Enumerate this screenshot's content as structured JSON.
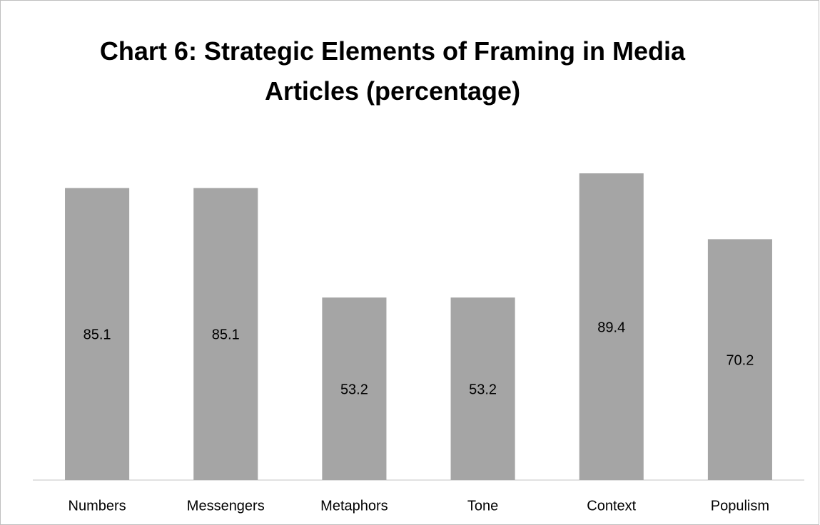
{
  "chart_data": {
    "type": "bar",
    "title": "Chart 6: Strategic Elements of Framing in Media Articles (percentage)",
    "categories": [
      "Numbers",
      "Messengers",
      "Metaphors",
      "Tone",
      "Context",
      "Populism"
    ],
    "values": [
      85.1,
      85.1,
      53.2,
      53.2,
      89.4,
      70.2
    ],
    "color": "#a5a5a5",
    "ylim": [
      0,
      100
    ]
  }
}
